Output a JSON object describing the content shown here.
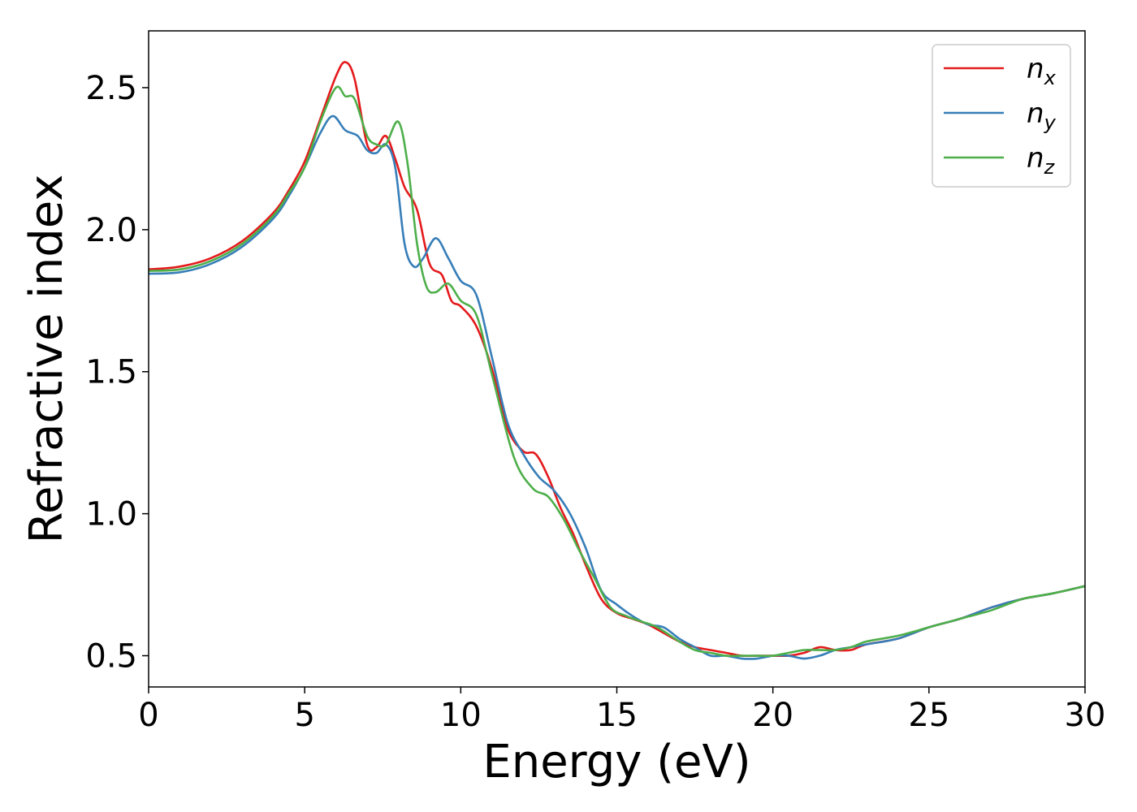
{
  "chart_data": {
    "type": "line",
    "xlabel": "Energy (eV)",
    "ylabel": "Refractive index",
    "xlim": [
      0,
      30
    ],
    "ylim": [
      0.39,
      2.7
    ],
    "xticks": [
      0,
      5,
      10,
      15,
      20,
      25,
      30
    ],
    "xtick_labels": [
      "0",
      "5",
      "10",
      "15",
      "20",
      "25",
      "30"
    ],
    "yticks": [
      0.5,
      1.0,
      1.5,
      2.0,
      2.5
    ],
    "ytick_labels": [
      "0.5",
      "1.0",
      "1.5",
      "2.0",
      "2.5"
    ],
    "grid": false,
    "legend_position": "top-right",
    "series": [
      {
        "name": "n",
        "subscript": "x",
        "color": "#e41a1c",
        "x": [
          0,
          1,
          2,
          3,
          4,
          4.5,
          5,
          5.5,
          6,
          6.3,
          6.6,
          7,
          7.3,
          7.6,
          7.9,
          8.2,
          8.6,
          9,
          9.4,
          9.7,
          10,
          10.5,
          11,
          11.5,
          12,
          12.4,
          12.8,
          13.2,
          13.6,
          14,
          14.5,
          15,
          15.5,
          16,
          16.5,
          17,
          17.5,
          18,
          18.5,
          19,
          19.5,
          20,
          20.5,
          21,
          21.5,
          22,
          22.5,
          23,
          24,
          25,
          26,
          27,
          28,
          29,
          30
        ],
        "y": [
          1.86,
          1.87,
          1.9,
          1.96,
          2.06,
          2.14,
          2.24,
          2.39,
          2.54,
          2.59,
          2.53,
          2.3,
          2.29,
          2.33,
          2.25,
          2.15,
          2.07,
          1.88,
          1.84,
          1.75,
          1.73,
          1.66,
          1.51,
          1.3,
          1.22,
          1.21,
          1.13,
          1.02,
          0.93,
          0.82,
          0.7,
          0.65,
          0.63,
          0.61,
          0.58,
          0.55,
          0.53,
          0.52,
          0.51,
          0.5,
          0.5,
          0.5,
          0.5,
          0.51,
          0.53,
          0.52,
          0.52,
          0.54,
          0.56,
          0.6,
          0.63,
          0.67,
          0.7,
          0.72,
          0.745
        ]
      },
      {
        "name": "n",
        "subscript": "y",
        "color": "#377eb8",
        "x": [
          0,
          1,
          2,
          3,
          4,
          4.5,
          5,
          5.5,
          5.9,
          6.3,
          6.7,
          7,
          7.3,
          7.6,
          7.9,
          8.2,
          8.5,
          8.8,
          9.2,
          9.6,
          10,
          10.5,
          11,
          11.5,
          12,
          12.5,
          13,
          13.5,
          14,
          14.5,
          15,
          15.5,
          16,
          16.5,
          17,
          17.5,
          18,
          18.5,
          19,
          19.5,
          20,
          20.5,
          21,
          21.5,
          22,
          22.5,
          23,
          24,
          25,
          26,
          27,
          28,
          29,
          30
        ],
        "y": [
          1.845,
          1.85,
          1.88,
          1.94,
          2.04,
          2.12,
          2.22,
          2.34,
          2.4,
          2.35,
          2.33,
          2.28,
          2.27,
          2.3,
          2.22,
          1.95,
          1.87,
          1.9,
          1.97,
          1.9,
          1.82,
          1.77,
          1.55,
          1.32,
          1.21,
          1.13,
          1.08,
          1.0,
          0.88,
          0.73,
          0.68,
          0.64,
          0.61,
          0.6,
          0.56,
          0.53,
          0.5,
          0.5,
          0.49,
          0.49,
          0.5,
          0.5,
          0.49,
          0.5,
          0.52,
          0.53,
          0.54,
          0.56,
          0.6,
          0.63,
          0.67,
          0.7,
          0.72,
          0.745
        ]
      },
      {
        "name": "n",
        "subscript": "z",
        "color": "#4daf4a",
        "x": [
          0,
          1,
          2,
          3,
          4,
          4.5,
          5,
          5.5,
          6,
          6.3,
          6.6,
          7,
          7.3,
          7.6,
          8,
          8.3,
          8.6,
          8.9,
          9.2,
          9.6,
          10,
          10.5,
          11,
          11.7,
          12.3,
          12.8,
          13.3,
          13.8,
          14.3,
          14.8,
          15.3,
          15.8,
          16.3,
          17,
          17.5,
          18,
          18.5,
          19,
          19.5,
          20,
          20.5,
          21,
          21.5,
          22,
          22.5,
          23,
          24,
          25,
          26,
          27,
          28,
          29,
          30
        ],
        "y": [
          1.855,
          1.86,
          1.89,
          1.95,
          2.05,
          2.13,
          2.22,
          2.38,
          2.5,
          2.47,
          2.46,
          2.33,
          2.3,
          2.3,
          2.38,
          2.23,
          1.95,
          1.8,
          1.78,
          1.81,
          1.75,
          1.7,
          1.49,
          1.2,
          1.09,
          1.06,
          0.98,
          0.87,
          0.77,
          0.67,
          0.64,
          0.62,
          0.6,
          0.55,
          0.52,
          0.51,
          0.5,
          0.5,
          0.5,
          0.5,
          0.51,
          0.52,
          0.52,
          0.52,
          0.53,
          0.55,
          0.57,
          0.6,
          0.63,
          0.66,
          0.7,
          0.72,
          0.745
        ]
      }
    ]
  }
}
